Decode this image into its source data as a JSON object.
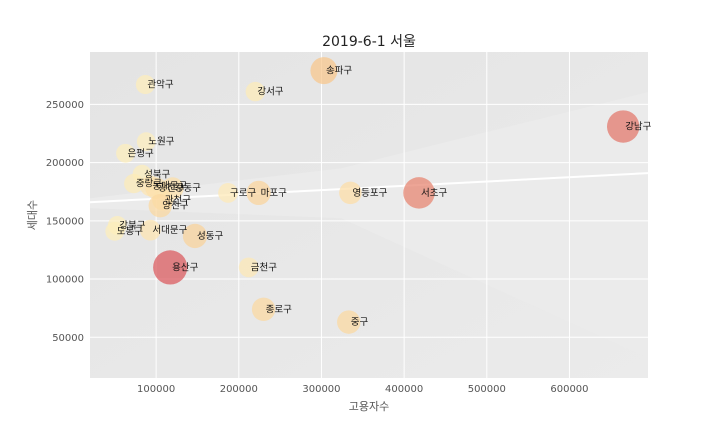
{
  "chart_data": {
    "type": "scatter",
    "title": "2019-6-1 서울",
    "xlabel": "고용자수",
    "ylabel": "세대수",
    "xlim": [
      20000,
      695000
    ],
    "ylim": [
      15000,
      295000
    ],
    "xticks": [
      100000,
      200000,
      300000,
      400000,
      500000,
      600000
    ],
    "xtick_labels": [
      "100000",
      "200000",
      "300000",
      "400000",
      "500000",
      "600000"
    ],
    "yticks": [
      50000,
      100000,
      150000,
      200000,
      250000
    ],
    "ytick_labels": [
      "50000",
      "100000",
      "150000",
      "200000",
      "250000"
    ],
    "grid": true,
    "trendline": {
      "x": [
        20000,
        695000
      ],
      "y": [
        166000,
        191000
      ],
      "color": "#ffffff"
    },
    "colors": {
      "plot_bg": "#e5e5e5",
      "grid": "#ffffff",
      "low": "#fff2c0",
      "mid": "#f8c68a",
      "high": "#d43d51"
    },
    "points": [
      {
        "name": "관악구",
        "x": 87000,
        "y": 267000,
        "size": 0.06
      },
      {
        "name": "강서구",
        "x": 220000,
        "y": 261000,
        "size": 0.08
      },
      {
        "name": "송파구",
        "x": 303000,
        "y": 279000,
        "size": 0.5
      },
      {
        "name": "강남구",
        "x": 665000,
        "y": 231000,
        "size": 0.8
      },
      {
        "name": "노원구",
        "x": 88000,
        "y": 218000,
        "size": 0.04
      },
      {
        "name": "은평구",
        "x": 63000,
        "y": 208000,
        "size": 0.05
      },
      {
        "name": "성북구",
        "x": 83000,
        "y": 190000,
        "size": 0.05
      },
      {
        "name": "중랑구",
        "x": 73000,
        "y": 182000,
        "size": 0.08
      },
      {
        "name": "동대문구",
        "x": 93000,
        "y": 180000,
        "size": 0.15
      },
      {
        "name": "광진구",
        "x": 100000,
        "y": 178000,
        "size": 0.2
      },
      {
        "name": "강동구",
        "x": 120000,
        "y": 178000,
        "size": 0.22
      },
      {
        "name": "구로구",
        "x": 187000,
        "y": 174000,
        "size": 0.1
      },
      {
        "name": "마포구",
        "x": 224000,
        "y": 174000,
        "size": 0.35
      },
      {
        "name": "영등포구",
        "x": 335000,
        "y": 174000,
        "size": 0.25
      },
      {
        "name": "서초구",
        "x": 418000,
        "y": 174000,
        "size": 0.75
      },
      {
        "name": "관천구",
        "x": 108000,
        "y": 168000,
        "size": 0.18
      },
      {
        "name": "양천구",
        "x": 105000,
        "y": 163000,
        "size": 0.3
      },
      {
        "name": "강북구",
        "x": 53000,
        "y": 146000,
        "size": 0.05
      },
      {
        "name": "도봉구",
        "x": 50000,
        "y": 141000,
        "size": 0.05
      },
      {
        "name": "서대문구",
        "x": 93000,
        "y": 142000,
        "size": 0.15
      },
      {
        "name": "성동구",
        "x": 147000,
        "y": 137000,
        "size": 0.35
      },
      {
        "name": "용산구",
        "x": 117000,
        "y": 110000,
        "size": 0.9
      },
      {
        "name": "금천구",
        "x": 212000,
        "y": 110000,
        "size": 0.1
      },
      {
        "name": "종로구",
        "x": 230000,
        "y": 74000,
        "size": 0.3
      },
      {
        "name": "중구",
        "x": 333000,
        "y": 63000,
        "size": 0.3
      }
    ]
  }
}
